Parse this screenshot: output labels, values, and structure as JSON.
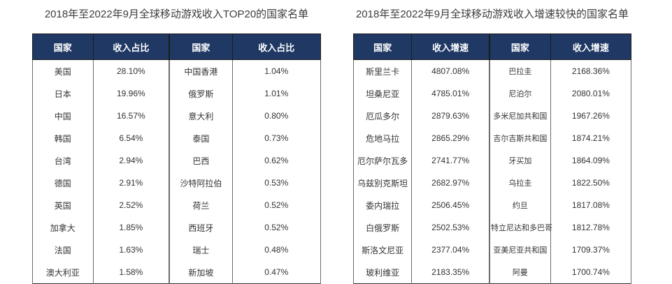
{
  "colors": {
    "header_bg": "#1f3864",
    "header_text": "#ffffff",
    "body_text": "#333333",
    "title_text": "#3d3d3d"
  },
  "tables": [
    {
      "title": "2018年至2022年9月全球移动游戏收入TOP20的国家名单",
      "headers": [
        "国家",
        "收入占比",
        "国家",
        "收入占比"
      ],
      "rows": [
        [
          "美国",
          "28.10%",
          "中国香港",
          "1.04%"
        ],
        [
          "日本",
          "19.96%",
          "俄罗斯",
          "1.01%"
        ],
        [
          "中国",
          "16.57%",
          "意大利",
          "0.80%"
        ],
        [
          "韩国",
          "6.54%",
          "泰国",
          "0.73%"
        ],
        [
          "台湾",
          "2.94%",
          "巴西",
          "0.62%"
        ],
        [
          "德国",
          "2.91%",
          "沙特阿拉伯",
          "0.53%"
        ],
        [
          "英国",
          "2.52%",
          "荷兰",
          "0.52%"
        ],
        [
          "加拿大",
          "1.85%",
          "西班牙",
          "0.52%"
        ],
        [
          "法国",
          "1.63%",
          "瑞士",
          "0.48%"
        ],
        [
          "澳大利亚",
          "1.58%",
          "新加坡",
          "0.47%"
        ]
      ]
    },
    {
      "title": "2018年至2022年9月全球移动游戏收入增速较快的国家名单",
      "headers": [
        "国家",
        "收入增速",
        "国家",
        "收入增速"
      ],
      "rows": [
        [
          "斯里兰卡",
          "4807.08%",
          "巴拉圭",
          "2168.36%"
        ],
        [
          "坦桑尼亚",
          "4785.01%",
          "尼泊尔",
          "2080.01%"
        ],
        [
          "厄瓜多尔",
          "2879.63%",
          "多米尼加共和国",
          "1967.26%"
        ],
        [
          "危地马拉",
          "2865.29%",
          "吉尔吉斯共和国",
          "1874.21%"
        ],
        [
          "厄尔萨尔瓦多",
          "2741.77%",
          "牙买加",
          "1864.09%"
        ],
        [
          "乌兹别克斯坦",
          "2682.97%",
          "乌拉圭",
          "1822.50%"
        ],
        [
          "委内瑞拉",
          "2506.45%",
          "约旦",
          "1817.08%"
        ],
        [
          "白俄罗斯",
          "2502.53%",
          "特立尼达和多巴哥",
          "1812.78%"
        ],
        [
          "斯洛文尼亚",
          "2377.04%",
          "亚美尼亚共和国",
          "1709.37%"
        ],
        [
          "玻利维亚",
          "2183.35%",
          "阿曼",
          "1700.74%"
        ]
      ]
    }
  ]
}
